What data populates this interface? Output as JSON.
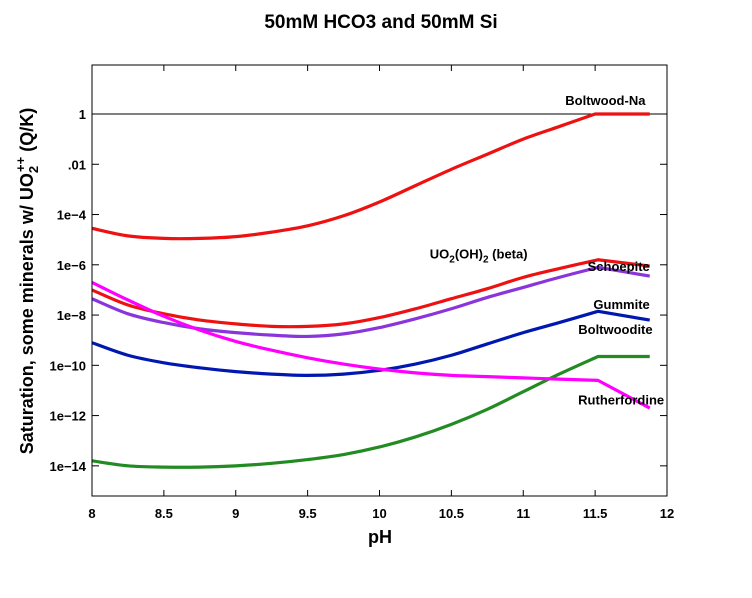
{
  "chart_data": {
    "type": "line",
    "title": "50mM HCO3 and 50mM Si",
    "xlabel": "pH",
    "ylabel_parts": [
      "Saturation, some minerals w/ UO",
      "2",
      "++",
      " (Q/K)"
    ],
    "xlim": [
      8,
      12
    ],
    "ylog_range": [
      -15.2,
      1.95
    ],
    "xscale": "linear",
    "yscale": "log",
    "x_ticks": [
      {
        "value": 8,
        "label": "8"
      },
      {
        "value": 8.5,
        "label": "8.5"
      },
      {
        "value": 9,
        "label": "9"
      },
      {
        "value": 9.5,
        "label": "9.5"
      },
      {
        "value": 10,
        "label": "10"
      },
      {
        "value": 10.5,
        "label": "10.5"
      },
      {
        "value": 11,
        "label": "11"
      },
      {
        "value": 11.5,
        "label": "11.5"
      },
      {
        "value": 12,
        "label": "12"
      }
    ],
    "y_ticks": [
      {
        "log": 0,
        "label": "1"
      },
      {
        "log": -2,
        "label": ".01"
      },
      {
        "log": -4,
        "label": "1e−4"
      },
      {
        "log": -6,
        "label": "1e−6"
      },
      {
        "log": -8,
        "label": "1e−8"
      },
      {
        "log": -10,
        "label": "1e−10"
      },
      {
        "log": -12,
        "label": "1e−12"
      },
      {
        "log": -14,
        "label": "1e−14"
      }
    ],
    "reference_line_log": 0,
    "series": [
      {
        "name": "Boltwood-Na",
        "label_parts": [
          "Boltwood-Na"
        ],
        "label_anchor": {
          "x": 11.85,
          "log": 0.35
        },
        "color": "#ee1111",
        "x": [
          8.0,
          8.25,
          8.5,
          8.75,
          9.0,
          9.25,
          9.5,
          9.75,
          10.0,
          10.25,
          10.5,
          10.75,
          11.0,
          11.25,
          11.5,
          11.52,
          11.88
        ],
        "log": [
          -4.55,
          -4.85,
          -4.95,
          -4.95,
          -4.88,
          -4.7,
          -4.45,
          -4.05,
          -3.5,
          -2.85,
          -2.2,
          -1.6,
          -1.0,
          -0.5,
          0.0,
          0.0,
          0.0
        ]
      },
      {
        "name": "UO2(OH)2 (beta)",
        "label_parts": [
          "UO",
          "2",
          "(OH)",
          "2",
          " (beta)"
        ],
        "label_anchor": {
          "x": 11.03,
          "log": -5.75
        },
        "color": "#ee1111",
        "x": [
          8.0,
          8.25,
          8.5,
          8.75,
          9.0,
          9.25,
          9.5,
          9.75,
          10.0,
          10.25,
          10.5,
          10.75,
          11.0,
          11.25,
          11.52,
          11.88
        ],
        "log": [
          -7.0,
          -7.6,
          -7.95,
          -8.2,
          -8.35,
          -8.45,
          -8.45,
          -8.35,
          -8.1,
          -7.75,
          -7.35,
          -6.95,
          -6.5,
          -6.15,
          -5.8,
          -6.05
        ]
      },
      {
        "name": "Schoepite",
        "label_parts": [
          "Schoepite"
        ],
        "label_anchor": {
          "x": 11.88,
          "log": -6.25
        },
        "color": "#8a35db",
        "x": [
          8.0,
          8.25,
          8.5,
          8.75,
          9.0,
          9.25,
          9.5,
          9.75,
          10.0,
          10.25,
          10.5,
          10.75,
          11.0,
          11.25,
          11.52,
          11.88
        ],
        "log": [
          -7.35,
          -7.95,
          -8.3,
          -8.55,
          -8.7,
          -8.8,
          -8.85,
          -8.75,
          -8.5,
          -8.15,
          -7.75,
          -7.3,
          -6.9,
          -6.5,
          -6.1,
          -6.45
        ]
      },
      {
        "name": "Gummite",
        "label_parts": [
          "Gummite"
        ],
        "label_anchor": {
          "x": 11.88,
          "log": -7.75
        },
        "color": "#0018b0",
        "x": [
          8.0,
          8.25,
          8.5,
          8.75,
          9.0,
          9.25,
          9.5,
          9.75,
          10.0,
          10.25,
          10.5,
          10.75,
          11.0,
          11.25,
          11.52,
          11.88
        ],
        "log": [
          -9.1,
          -9.6,
          -9.9,
          -10.1,
          -10.25,
          -10.35,
          -10.4,
          -10.35,
          -10.2,
          -9.95,
          -9.6,
          -9.15,
          -8.7,
          -8.3,
          -7.85,
          -8.2
        ]
      },
      {
        "name": "Boltwoodite",
        "label_parts": [
          "Boltwoodite"
        ],
        "label_anchor": {
          "x": 11.9,
          "log": -8.75
        },
        "color": "#228b22",
        "x": [
          8.0,
          8.25,
          8.5,
          8.75,
          9.0,
          9.25,
          9.5,
          9.75,
          10.0,
          10.25,
          10.5,
          10.75,
          11.0,
          11.25,
          11.52,
          11.88
        ],
        "log": [
          -13.8,
          -14.0,
          -14.05,
          -14.05,
          -14.0,
          -13.9,
          -13.75,
          -13.55,
          -13.25,
          -12.85,
          -12.35,
          -11.75,
          -11.05,
          -10.35,
          -9.65,
          -9.65
        ]
      },
      {
        "name": "Rutherfordine",
        "label_parts": [
          "Rutherfordine"
        ],
        "label_anchor": {
          "x": 11.98,
          "log": -11.55
        },
        "color": "#ff00ff",
        "x": [
          8.0,
          8.25,
          8.5,
          8.75,
          9.0,
          9.25,
          9.5,
          9.75,
          10.0,
          10.25,
          10.5,
          10.75,
          11.0,
          11.25,
          11.52,
          11.88
        ],
        "log": [
          -6.7,
          -7.4,
          -8.05,
          -8.6,
          -9.05,
          -9.4,
          -9.7,
          -9.95,
          -10.15,
          -10.3,
          -10.4,
          -10.45,
          -10.5,
          -10.55,
          -10.6,
          -11.7
        ]
      }
    ]
  }
}
